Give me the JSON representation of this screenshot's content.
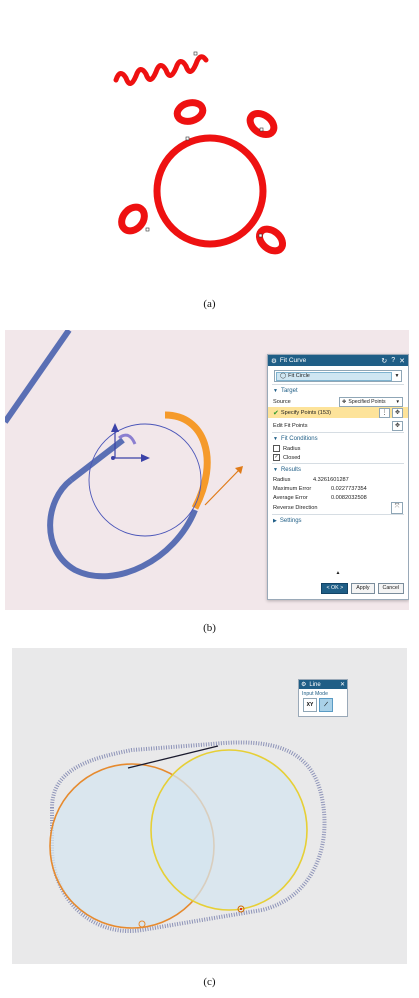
{
  "captions": {
    "a": "(a)",
    "b": "(b)",
    "c": "(c)"
  },
  "fit_curve_dialog": {
    "title": "Fit Curve",
    "title_controls": [
      "↻",
      "?",
      "✕"
    ],
    "type_value": "Fit Circle",
    "target_section": "Target",
    "source_label": "Source",
    "source_value": "Specified Points",
    "specify_points_label": "Specify Points (153)",
    "edit_fit_points_label": "Edit Fit Points",
    "fit_conditions_section": "Fit Conditions",
    "radius_checkbox_label": "Radius",
    "radius_checked": false,
    "closed_checkbox_label": "Closed",
    "closed_checked": true,
    "results_section": "Results",
    "radius_label": "Radius",
    "radius_value": "4.3261601287",
    "max_error_label": "Maximum Error",
    "max_error_value": "0.0227737354",
    "avg_error_label": "Average Error",
    "avg_error_value": "0.0082032508",
    "reverse_direction_label": "Reverse Direction",
    "settings_section": "Settings",
    "ok_label": "< OK >",
    "apply_label": "Apply",
    "cancel_label": "Cancel"
  },
  "line_dialog": {
    "title": "Line",
    "close": "✕",
    "input_mode_label": "Input Mode",
    "mode_xy": "XY"
  },
  "colors": {
    "red_curve": "#ee1111",
    "blue_points": "#5a6fb4",
    "orange_selected": "#f59a2a",
    "fit_circle_line": "#4a55b8",
    "dialog_header": "#1f5e86",
    "yellow_circle": "#e6cf36",
    "orange_circle": "#e68a2e",
    "fill_circle": "#d4e4ef"
  }
}
